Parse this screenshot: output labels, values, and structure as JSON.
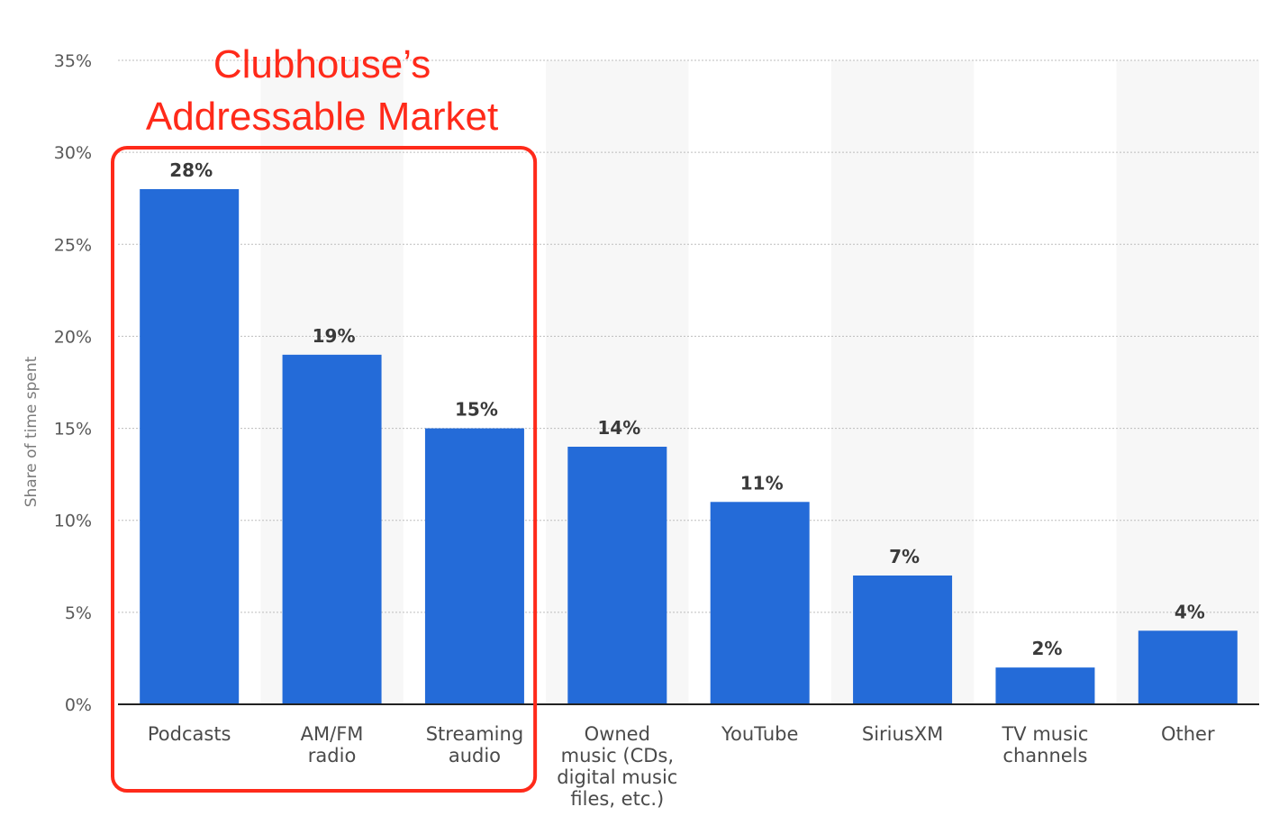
{
  "chart_data": {
    "type": "bar",
    "ylabel": "Share of time spent",
    "ylim": [
      0,
      35
    ],
    "yticks": [
      0,
      5,
      10,
      15,
      20,
      25,
      30,
      35
    ],
    "ytick_labels": [
      "0%",
      "5%",
      "10%",
      "15%",
      "20%",
      "25%",
      "30%",
      "35%"
    ],
    "categories": [
      [
        "Podcasts"
      ],
      [
        "AM/FM",
        "radio"
      ],
      [
        "Streaming",
        "audio"
      ],
      [
        "Owned",
        "music (CDs,",
        "digital music",
        "files, etc.)"
      ],
      [
        "YouTube"
      ],
      [
        "SiriusXM"
      ],
      [
        "TV music",
        "channels"
      ],
      [
        "Other"
      ]
    ],
    "values": [
      28,
      19,
      15,
      14,
      11,
      7,
      2,
      4
    ],
    "value_labels": [
      "28%",
      "19%",
      "15%",
      "14%",
      "11%",
      "7%",
      "2%",
      "4%"
    ],
    "grid": true,
    "bar_color": "#246bd8",
    "annotation": {
      "lines": [
        "Clubhouse’s",
        "Addressable Market"
      ],
      "color": "#ff2a1a",
      "highlighted_categories": [
        0,
        1,
        2
      ]
    }
  }
}
